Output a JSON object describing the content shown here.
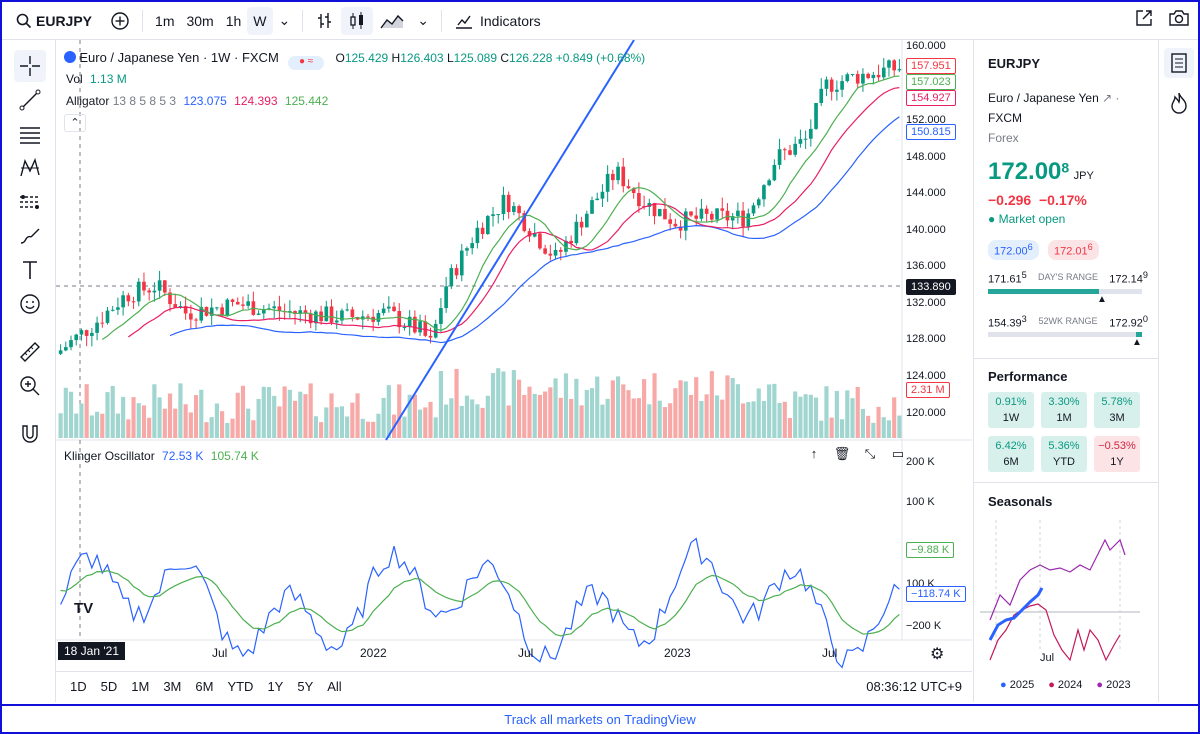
{
  "topbar": {
    "symbol": "EURJPY",
    "intervals": [
      "1m",
      "30m",
      "1h",
      "W"
    ],
    "indicators_label": "Indicators"
  },
  "legend": {
    "title": "Euro / Japanese Yen · 1W · FXCM",
    "o_label": "O",
    "o": "125.429",
    "h_label": "H",
    "h": "126.403",
    "l_label": "L",
    "l": "125.089",
    "c_label": "C",
    "c": "126.228",
    "change": "+0.849 (+0.68%)",
    "vol_label": "Vol",
    "vol": "1.13 M",
    "alligator_label": "Alligator",
    "alligator_params": "13 8 5 8 5 3",
    "alligator_jaw": "123.075",
    "alligator_teeth": "124.393",
    "alligator_lips": "125.442",
    "klinger_label": "Klinger Oscillator",
    "klinger_v1": "72.53 K",
    "klinger_v2": "105.74 K"
  },
  "price_axis": [
    "160.000",
    "152.000",
    "148.000",
    "144.000",
    "140.000",
    "136.000",
    "132.000",
    "128.000",
    "124.000",
    "120.000"
  ],
  "price_tags": {
    "last": "157.951",
    "lips": "157.023",
    "teeth": "154.927",
    "jaw": "150.815",
    "crosshair": "133.890",
    "volume": "2.31 M"
  },
  "osc_axis": [
    "200 K",
    "100 K",
    "100 K",
    "−200 K"
  ],
  "osc_tags": {
    "signal": "−9.88 K",
    "line": "−118.74 K"
  },
  "time_axis": [
    "Jul",
    "2022",
    "Jul",
    "2023",
    "Jul"
  ],
  "crosshair_date": "18 Jan '21",
  "bottombar": {
    "ranges": [
      "1D",
      "5D",
      "1M",
      "3M",
      "6M",
      "YTD",
      "1Y",
      "5Y",
      "All"
    ],
    "clock": "08:36:12 UTC+9"
  },
  "panel": {
    "symbol": "EURJPY",
    "name": "Euro / Japanese Yen",
    "exchange": "FXCM",
    "type": "Forex",
    "price": "172.00",
    "price_sup": "8",
    "currency": "JPY",
    "change": "−0.296",
    "change_pct": "−0.17%",
    "market_status": "Market open",
    "bid": "172.00",
    "bid_sup": "6",
    "ask": "172.01",
    "ask_sup": "6",
    "day_low": "171.61",
    "day_low_sup": "5",
    "day_range_label": "DAY'S RANGE",
    "day_high": "172.14",
    "day_high_sup": "9",
    "wk_low": "154.39",
    "wk_low_sup": "3",
    "wk_range_label": "52WK RANGE",
    "wk_high": "172.92",
    "wk_high_sup": "0",
    "performance_title": "Performance",
    "performance": [
      {
        "value": "0.91%",
        "label": "1W",
        "sign": "pos"
      },
      {
        "value": "3.30%",
        "label": "1M",
        "sign": "pos"
      },
      {
        "value": "5.78%",
        "label": "3M",
        "sign": "pos"
      },
      {
        "value": "6.42%",
        "label": "6M",
        "sign": "pos"
      },
      {
        "value": "5.36%",
        "label": "YTD",
        "sign": "pos"
      },
      {
        "value": "−0.53%",
        "label": "1Y",
        "sign": "neg"
      }
    ],
    "seasonals_title": "Seasonals",
    "seasonals_axis": "Jul",
    "seasonals_legend": [
      {
        "year": "2025",
        "color": "#2962ff"
      },
      {
        "year": "2024",
        "color": "#c2185b"
      },
      {
        "year": "2023",
        "color": "#9c27b0"
      }
    ]
  },
  "footer": "Track all markets on TradingView",
  "colors": {
    "up": "#089981",
    "down": "#f23645",
    "jaw": "#2962ff",
    "teeth": "#e91e63",
    "lips": "#4caf50",
    "vol_up": "#a1d6d0",
    "vol_down": "#f7a9a7"
  }
}
